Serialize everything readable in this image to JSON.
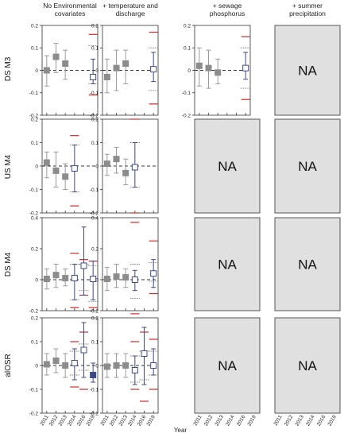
{
  "chart_data": {
    "type": "scatter",
    "column_titles": [
      [
        "No Environmental",
        "covariates"
      ],
      [
        "+ temperature and",
        "discharge"
      ],
      [
        "+ sewage",
        "phosphorus"
      ],
      [
        "+ summer",
        "precipitation"
      ]
    ],
    "row_labels": [
      "DS M3",
      "US M4",
      "DS M4",
      "alOSR"
    ],
    "x_categories": [
      "2011",
      "2012",
      "2013",
      "2014",
      "2016",
      "2019"
    ],
    "xlabel": "Year",
    "na_label": "NA",
    "colors": {
      "grey": "#8c8c8c",
      "blue": "#3d4a8a",
      "red": "#d62728",
      "na_fill": "#e0e0e0"
    },
    "rows": [
      {
        "ylim": [
          -0.2,
          0.2
        ],
        "ticks": [
          "-0.2",
          "-0.1",
          "0",
          "0.1",
          "0.2"
        ],
        "tick_values": [
          -0.2,
          -0.1,
          0,
          0.1,
          0.2
        ],
        "panels": [
          {
            "na": false,
            "points": [
              {
                "x": "2011",
                "y": 0.0,
                "lo": -0.07,
                "hi": 0.065,
                "style": "grey"
              },
              {
                "x": "2012",
                "y": 0.06,
                "lo": -0.01,
                "hi": 0.12,
                "style": "grey"
              },
              {
                "x": "2013",
                "y": 0.03,
                "lo": -0.04,
                "hi": 0.09,
                "style": "grey"
              },
              {
                "x": "2019",
                "y": -0.03,
                "lo": -0.06,
                "hi": 0.05,
                "style": "open",
                "red_hi": 0.16,
                "red_lo": -0.11,
                "dot_hi": 0.11,
                "dot_lo": -0.06
              }
            ]
          },
          {
            "na": false,
            "points": [
              {
                "x": "2011",
                "y": -0.03,
                "lo": -0.1,
                "hi": 0.05,
                "style": "grey"
              },
              {
                "x": "2012",
                "y": 0.01,
                "lo": -0.09,
                "hi": 0.09,
                "style": "grey"
              },
              {
                "x": "2013",
                "y": 0.03,
                "lo": -0.06,
                "hi": 0.09,
                "style": "grey"
              },
              {
                "x": "2019",
                "y": 0.005,
                "lo": -0.05,
                "hi": 0.08,
                "style": "open",
                "red_hi": 0.17,
                "red_lo": -0.15,
                "dot_hi": 0.1,
                "dot_lo": -0.09
              }
            ]
          },
          {
            "na": false,
            "points": [
              {
                "x": "2011",
                "y": 0.02,
                "lo": -0.07,
                "hi": 0.1,
                "style": "grey"
              },
              {
                "x": "2012",
                "y": 0.01,
                "lo": -0.08,
                "hi": 0.09,
                "style": "grey"
              },
              {
                "x": "2013",
                "y": -0.01,
                "lo": -0.06,
                "hi": 0.05,
                "style": "grey"
              },
              {
                "x": "2019",
                "y": 0.01,
                "lo": -0.04,
                "hi": 0.08,
                "style": "open",
                "red_hi": 0.15,
                "red_lo": -0.13,
                "dot_hi": 0.1,
                "dot_lo": -0.08
              }
            ]
          },
          {
            "na": true,
            "points": []
          }
        ]
      },
      {
        "ylim": [
          -0.2,
          0.2
        ],
        "ticks": [
          "-0.2",
          "-0.1",
          "0",
          "0.1",
          "0.2"
        ],
        "tick_values": [
          -0.2,
          -0.1,
          0,
          0.1,
          0.2
        ],
        "panels": [
          {
            "na": false,
            "points": [
              {
                "x": "2011",
                "y": 0.015,
                "lo": -0.05,
                "hi": 0.06,
                "style": "grey"
              },
              {
                "x": "2012",
                "y": -0.02,
                "lo": -0.09,
                "hi": 0.06,
                "style": "grey"
              },
              {
                "x": "2013",
                "y": -0.045,
                "lo": -0.1,
                "hi": 0.01,
                "style": "grey"
              },
              {
                "x": "2014",
                "y": -0.01,
                "lo": -0.11,
                "hi": 0.09,
                "style": "open",
                "red_hi": 0.13,
                "red_lo": -0.17,
                "dot_hi": 0.09,
                "dot_lo": -0.11
              }
            ]
          },
          {
            "na": false,
            "points": [
              {
                "x": "2011",
                "y": 0.01,
                "lo": -0.04,
                "hi": 0.05,
                "style": "grey"
              },
              {
                "x": "2012",
                "y": 0.03,
                "lo": -0.03,
                "hi": 0.08,
                "style": "grey"
              },
              {
                "x": "2013",
                "y": -0.03,
                "lo": -0.08,
                "hi": 0.03,
                "style": "grey"
              },
              {
                "x": "2014",
                "y": -0.005,
                "lo": -0.09,
                "hi": 0.1,
                "style": "open",
                "red_hi": 0.2,
                "red_lo": -0.2,
                "dot_hi": 0.1,
                "dot_lo": -0.09
              }
            ]
          },
          {
            "na": true,
            "points": []
          },
          {
            "na": true,
            "points": []
          }
        ]
      },
      {
        "ylim": [
          -0.2,
          0.4
        ],
        "ticks": [
          "-0.2",
          "0",
          "0.2",
          "0.4"
        ],
        "tick_values": [
          -0.2,
          0,
          0.2,
          0.4
        ],
        "panels": [
          {
            "na": false,
            "points": [
              {
                "x": "2011",
                "y": 0.005,
                "lo": -0.06,
                "hi": 0.07,
                "style": "grey"
              },
              {
                "x": "2012",
                "y": 0.03,
                "lo": -0.05,
                "hi": 0.1,
                "style": "grey"
              },
              {
                "x": "2013",
                "y": 0.01,
                "lo": -0.04,
                "hi": 0.07,
                "style": "grey"
              },
              {
                "x": "2014",
                "y": 0.01,
                "lo": -0.13,
                "hi": 0.1,
                "style": "open",
                "red_hi": 0.17,
                "red_lo": -0.18,
                "dot_hi": 0.1,
                "dot_lo": -0.13
              },
              {
                "x": "2016",
                "y": 0.09,
                "lo": -0.1,
                "hi": 0.34,
                "style": "open",
                "red_hi": 0.13,
                "red_lo": -0.1,
                "dot_hi": 0.1,
                "dot_lo": -0.07
              },
              {
                "x": "2019",
                "y": 0.005,
                "lo": -0.13,
                "hi": 0.12,
                "style": "open",
                "red_hi": 0.12,
                "red_lo": -0.18,
                "dot_hi": 0.09,
                "dot_lo": -0.14
              }
            ]
          },
          {
            "na": false,
            "points": [
              {
                "x": "2011",
                "y": 0.005,
                "lo": -0.07,
                "hi": 0.08,
                "style": "grey"
              },
              {
                "x": "2012",
                "y": 0.02,
                "lo": -0.05,
                "hi": 0.1,
                "style": "grey"
              },
              {
                "x": "2013",
                "y": 0.015,
                "lo": -0.05,
                "hi": 0.07,
                "style": "grey"
              },
              {
                "x": "2014",
                "y": 0.0,
                "lo": -0.07,
                "hi": 0.06,
                "style": "open",
                "red_hi": 0.37,
                "red_lo": -0.22,
                "dot_hi": 0.1,
                "dot_lo": -0.12
              },
              {
                "x": "2019",
                "y": 0.04,
                "lo": -0.05,
                "hi": 0.13,
                "style": "open",
                "red_hi": 0.25,
                "red_lo": -0.09,
                "dot_hi": 0.11,
                "dot_lo": -0.01
              }
            ]
          },
          {
            "na": true,
            "points": []
          },
          {
            "na": true,
            "points": []
          }
        ]
      },
      {
        "ylim": [
          -0.2,
          0.2
        ],
        "ticks": [
          "-0.2",
          "-0.1",
          "0",
          "0.1",
          "0.2"
        ],
        "tick_values": [
          -0.2,
          -0.1,
          0,
          0.1,
          0.2
        ],
        "panels": [
          {
            "na": false,
            "points": [
              {
                "x": "2011",
                "y": 0.005,
                "lo": -0.04,
                "hi": 0.05,
                "style": "grey"
              },
              {
                "x": "2012",
                "y": 0.02,
                "lo": -0.03,
                "hi": 0.07,
                "style": "grey"
              },
              {
                "x": "2013",
                "y": 0.0,
                "lo": -0.05,
                "hi": 0.05,
                "style": "grey"
              },
              {
                "x": "2014",
                "y": 0.01,
                "lo": -0.06,
                "hi": 0.07,
                "style": "open",
                "red_hi": 0.1,
                "red_lo": -0.09,
                "dot_hi": 0.06,
                "dot_lo": -0.04
              },
              {
                "x": "2016",
                "y": 0.065,
                "lo": -0.05,
                "hi": 0.18,
                "style": "open",
                "red_hi": 0.14,
                "red_lo": -0.1,
                "dot_hi": 0.09,
                "dot_lo": -0.02
              },
              {
                "x": "2019",
                "y": -0.04,
                "lo": -0.07,
                "hi": 0.01,
                "style": "filled"
              }
            ]
          },
          {
            "na": false,
            "points": [
              {
                "x": "2011",
                "y": -0.005,
                "lo": -0.05,
                "hi": 0.05,
                "style": "grey"
              },
              {
                "x": "2012",
                "y": 0.0,
                "lo": -0.05,
                "hi": 0.05,
                "style": "grey"
              },
              {
                "x": "2013",
                "y": 0.0,
                "lo": -0.05,
                "hi": 0.05,
                "style": "grey"
              },
              {
                "x": "2014",
                "y": -0.02,
                "lo": -0.08,
                "hi": 0.04,
                "style": "open",
                "red_hi": 0.1,
                "red_lo": -0.1,
                "dot_hi": 0.04,
                "dot_lo": -0.07
              },
              {
                "x": "2016",
                "y": 0.05,
                "lo": -0.08,
                "hi": 0.16,
                "style": "open",
                "red_hi": 0.14,
                "red_lo": -0.15,
                "dot_hi": 0.06,
                "dot_lo": -0.06
              },
              {
                "x": "2019",
                "y": 0.0,
                "lo": -0.04,
                "hi": 0.07,
                "style": "open",
                "red_hi": 0.11,
                "red_lo": -0.1,
                "dot_hi": 0.06,
                "dot_lo": -0.04
              }
            ]
          },
          {
            "na": true,
            "points": []
          },
          {
            "na": true,
            "points": []
          }
        ]
      }
    ]
  }
}
